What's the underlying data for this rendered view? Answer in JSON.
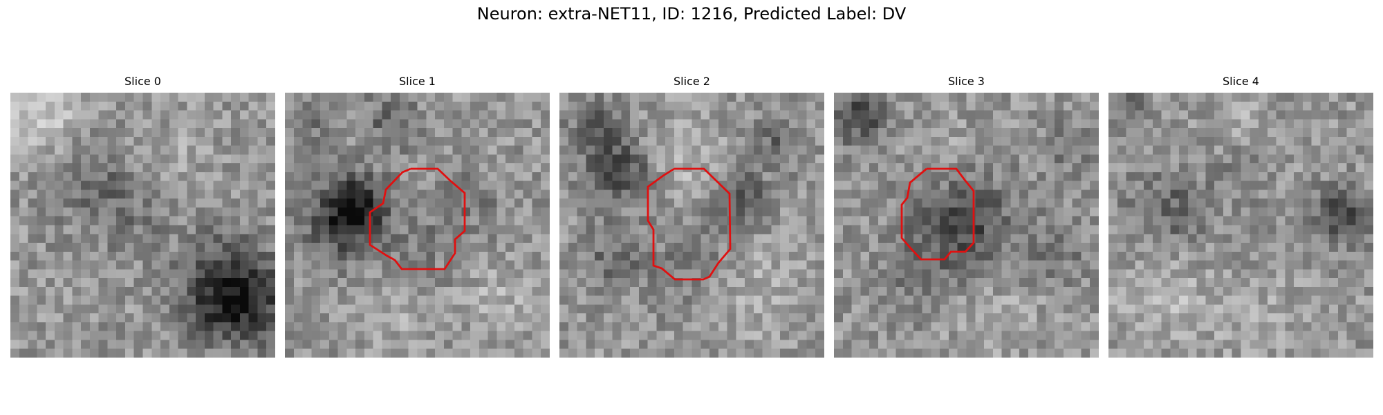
{
  "figure": {
    "title": "Neuron: extra-NET11, ID: 1216, Predicted Label: DV"
  },
  "panels": [
    {
      "title": "Slice 0"
    },
    {
      "title": "Slice 1"
    },
    {
      "title": "Slice 2"
    },
    {
      "title": "Slice 3"
    },
    {
      "title": "Slice 4"
    }
  ],
  "colors": {
    "contour": "#e01010",
    "background": "#ffffff"
  }
}
